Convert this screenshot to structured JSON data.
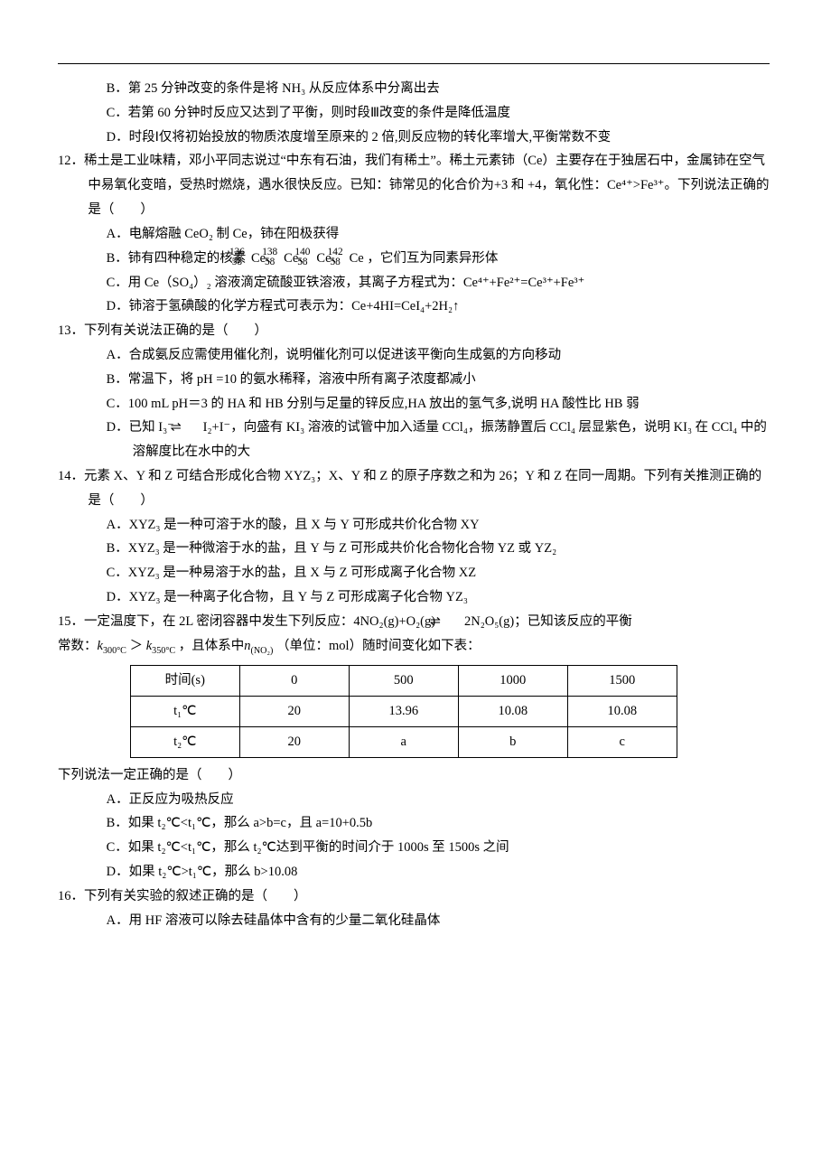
{
  "q11": {
    "opts": {
      "B": "B．第 25 分钟改变的条件是将 NH₃ 从反应体系中分离出去",
      "C": "C．若第 60 分钟时反应又达到了平衡，则时段Ⅲ改变的条件是降低温度",
      "D": "D．时段Ⅰ仅将初始投放的物质浓度增至原来的 2 倍,则反应物的转化率增大,平衡常数不变"
    }
  },
  "q12": {
    "stem1": "12．稀土是工业味精，邓小平同志说过“中东有石油，我们有稀土”。稀土元素铈（Ce）主要存在于独居石中，金属铈在空气中易氧化变暗，受热时燃烧，遇水很快反应。已知：铈常见的化合价为+3 和 +4，氧化性：Ce⁴⁺>Fe³⁺。下列说法正确的是（　　）",
    "opts": {
      "A": "A．电解熔融 CeO₂ 制 Ce，铈在阳极获得",
      "B_pre": "B．铈有四种稳定的核素",
      "B_iso": [
        {
          "a": "136",
          "z": "58",
          "s": "Ce"
        },
        {
          "a": "138",
          "z": "58",
          "s": "Ce"
        },
        {
          "a": "140",
          "z": "58",
          "s": "Ce"
        },
        {
          "a": "142",
          "z": "58",
          "s": "Ce"
        }
      ],
      "B_post": "，它们互为同素异形体",
      "C": "C．用 Ce（SO₄）₂ 溶液滴定硫酸亚铁溶液，其离子方程式为：Ce⁴⁺+Fe²⁺=Ce³⁺+Fe³⁺",
      "D": "D．铈溶于氢碘酸的化学方程式可表示为：Ce+4HI=CeI₄+2H₂↑"
    }
  },
  "q13": {
    "stem": "13．下列有关说法正确的是（　　）",
    "opts": {
      "A": "A．合成氨反应需使用催化剂，说明催化剂可以促进该平衡向生成氨的方向移动",
      "B": "B．常温下，将 pH =10 的氨水稀释，溶液中所有离子浓度都减小",
      "C": "C．100 mL pH＝3 的 HA 和 HB 分别与足量的锌反应,HA 放出的氢气多,说明 HA 酸性比 HB 弱",
      "D1": "D．已知 I₃⁻",
      "D2": "I₂+I⁻，向盛有 KI₃ 溶液的试管中加入适量 CCl₄，振荡静置后 CCl₄ 层显紫色，说明 KI₃ 在 CCl₄ 中的溶解度比在水中的大"
    }
  },
  "q14": {
    "stem": "14．元素 X、Y 和 Z 可结合形成化合物 XYZ₃；X、Y 和 Z 的原子序数之和为 26；Y 和 Z 在同一周期。下列有关推测正确的是（　　）",
    "opts": {
      "A": "A．XYZ₃ 是一种可溶于水的酸，且 X 与 Y 可形成共价化合物 XY",
      "B": "B．XYZ₃ 是一种微溶于水的盐，且 Y 与 Z 可形成共价化合物化合物 YZ 或 YZ₂",
      "C": "C．XYZ₃ 是一种易溶于水的盐，且 X 与 Z 可形成离子化合物 XZ",
      "D": "D．XYZ₃ 是一种离子化合物，且 Y 与 Z 可形成离子化合物 YZ₃"
    }
  },
  "q15": {
    "stem1_a": "15．一定温度下，在 2L 密闭容器中发生下列反应：4NO₂(g)+O₂(g)",
    "stem1_b": "2N₂O₅(g)；已知该反应的平衡",
    "stem2_a": "常数：",
    "k1_base": "k",
    "k1_sub": "300°C",
    "gt": "＞",
    "k2_base": "k",
    "k2_sub": "350°C",
    "stem2_mid": "，且体系中",
    "n_base": "n",
    "n_sub": "(NO₂)",
    "stem2_b": "（单位：mol）随时间变化如下表：",
    "table": {
      "header": [
        "时间(s)",
        "0",
        "500",
        "1000",
        "1500"
      ],
      "rows": [
        [
          "t₁℃",
          "20",
          "13.96",
          "10.08",
          "10.08"
        ],
        [
          "t₂℃",
          "20",
          "a",
          "b",
          "c"
        ]
      ]
    },
    "below": "下列说法一定正确的是（　　）",
    "opts": {
      "A": "A．正反应为吸热反应",
      "B": "B．如果 t₂℃<t₁℃，那么 a>b=c，且 a=10+0.5b",
      "C": "C．如果 t₂℃<t₁℃，那么 t₂℃达到平衡的时间介于 1000s 至 1500s 之间",
      "D": "D．如果 t₂℃>t₁℃，那么 b>10.08"
    }
  },
  "q16": {
    "stem": "16．下列有关实验的叙述正确的是（　　）",
    "opts": {
      "A": "A．用 HF 溶液可以除去硅晶体中含有的少量二氧化硅晶体"
    }
  }
}
